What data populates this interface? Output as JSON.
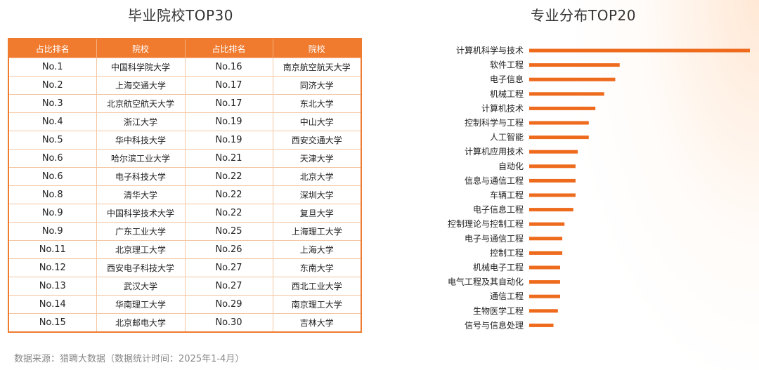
{
  "left_title": "毕业院校TOP30",
  "right_title": "专业分布TOP20",
  "table": {
    "headers": [
      "占比排名",
      "院校",
      "占比排名",
      "院校"
    ],
    "rows": [
      [
        "No.1",
        "中国科学院大学",
        "No.16",
        "南京航空航天大学"
      ],
      [
        "No.2",
        "上海交通大学",
        "No.17",
        "同济大学"
      ],
      [
        "No.3",
        "北京航空航天大学",
        "No.17",
        "东北大学"
      ],
      [
        "No.4",
        "浙江大学",
        "No.19",
        "中山大学"
      ],
      [
        "No.5",
        "华中科技大学",
        "No.19",
        "西安交通大学"
      ],
      [
        "No.6",
        "哈尔滨工业大学",
        "No.21",
        "天津大学"
      ],
      [
        "No.6",
        "电子科技大学",
        "No.22",
        "北京大学"
      ],
      [
        "No.8",
        "清华大学",
        "No.22",
        "深圳大学"
      ],
      [
        "No.9",
        "中国科学技术大学",
        "No.22",
        "复旦大学"
      ],
      [
        "No.9",
        "广东工业大学",
        "No.25",
        "上海理工大学"
      ],
      [
        "No.11",
        "北京理工大学",
        "No.26",
        "上海大学"
      ],
      [
        "No.12",
        "西安电子科技大学",
        "No.27",
        "东南大学"
      ],
      [
        "No.13",
        "武汉大学",
        "No.27",
        "西北工业大学"
      ],
      [
        "No.14",
        "华南理工大学",
        "No.29",
        "南京理工大学"
      ],
      [
        "No.15",
        "北京邮电大学",
        "No.30",
        "吉林大学"
      ]
    ]
  },
  "footnote": "数据来源：猎聘大数据（数据统计时间：2025年1-4月）",
  "colors": {
    "accent": "#f07a2e",
    "bar": "#ee6a1c",
    "text": "#333333"
  },
  "chart_data": {
    "type": "bar",
    "orientation": "horizontal",
    "title": "专业分布TOP20",
    "categories": [
      "计算机科学与技术",
      "软件工程",
      "电子信息",
      "机械工程",
      "计算机技术",
      "控制科学与工程",
      "人工智能",
      "计算机应用技术",
      "自动化",
      "信息与通信工程",
      "车辆工程",
      "电子信息工程",
      "控制理论与控制工程",
      "电子与通信工程",
      "控制工程",
      "机械电子工程",
      "电气工程及其自动化",
      "通信工程",
      "生物医学工程",
      "信号与信息处理"
    ],
    "values": [
      100,
      41,
      39,
      34,
      30,
      27,
      27,
      22,
      21,
      21,
      21,
      20,
      16,
      15,
      15,
      14,
      14,
      14,
      13,
      11
    ],
    "value_scale": "relative (longest bar = 100), no axis printed",
    "grid": false,
    "legend": "none"
  }
}
